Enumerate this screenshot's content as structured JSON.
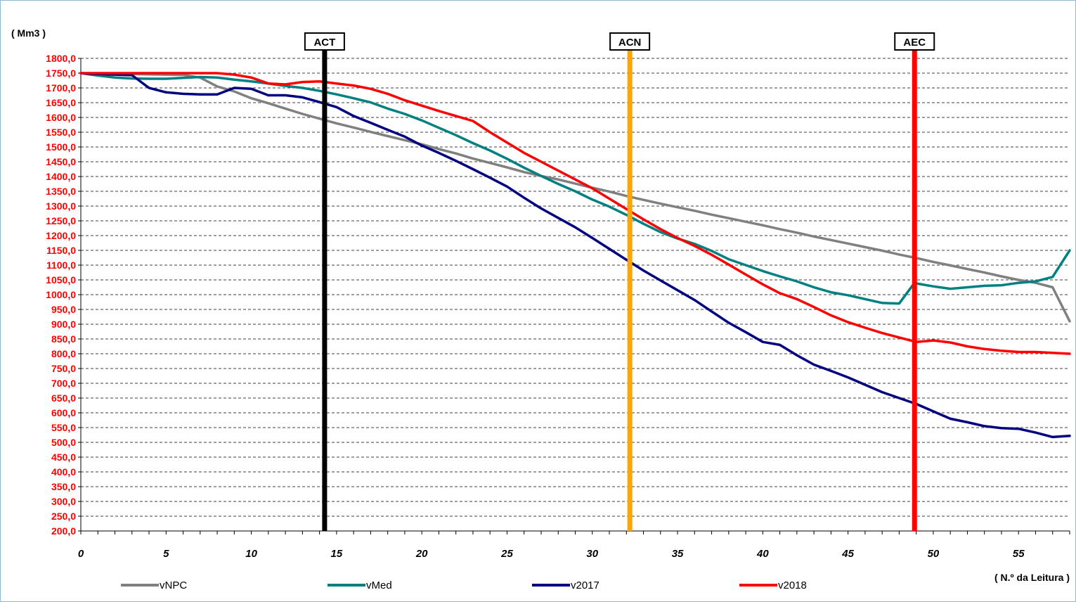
{
  "chart_data": {
    "type": "line",
    "ylabel": "( Mm3 )",
    "xlabel": "( N.º da Leitura )",
    "xlim": [
      0,
      58
    ],
    "ylim": [
      200,
      1800
    ],
    "xticks": [
      0,
      5,
      10,
      15,
      20,
      25,
      30,
      35,
      40,
      45,
      50,
      55
    ],
    "xtick_labels": [
      "0",
      "5",
      "10",
      "15",
      "20",
      "25",
      "30",
      "35",
      "40",
      "45",
      "50",
      "55"
    ],
    "yticks": [
      200,
      250,
      300,
      350,
      400,
      450,
      500,
      550,
      600,
      650,
      700,
      750,
      800,
      850,
      900,
      950,
      1000,
      1050,
      1100,
      1150,
      1200,
      1250,
      1300,
      1350,
      1400,
      1450,
      1500,
      1550,
      1600,
      1650,
      1700,
      1750,
      1800
    ],
    "ytick_labels": [
      "200,0",
      "250,0",
      "300,0",
      "350,0",
      "400,0",
      "450,0",
      "500,0",
      "550,0",
      "600,0",
      "650,0",
      "700,0",
      "750,0",
      "800,0",
      "850,0",
      "900,0",
      "950,0",
      "1000,0",
      "1050,0",
      "1100,0",
      "1150,0",
      "1200,0",
      "1250,0",
      "1300,0",
      "1350,0",
      "1400,0",
      "1450,0",
      "1500,0",
      "1550,0",
      "1600,0",
      "1650,0",
      "1700,0",
      "1750,0",
      "1800,0"
    ],
    "grid": true,
    "legend_position": "bottom",
    "markers": [
      {
        "label": "ACT",
        "x": 14.3,
        "color": "#000000"
      },
      {
        "label": "ACN",
        "x": 32.2,
        "color": "#ffa500"
      },
      {
        "label": "AEC",
        "x": 48.9,
        "color": "#ff0000"
      }
    ],
    "series": [
      {
        "name": "vNPC",
        "color": "#808080",
        "points": [
          [
            0,
            1750
          ],
          [
            1,
            1749
          ],
          [
            2,
            1748
          ],
          [
            3,
            1747
          ],
          [
            4,
            1746
          ],
          [
            5,
            1745
          ],
          [
            6,
            1744
          ],
          [
            7,
            1735
          ],
          [
            8,
            1705
          ],
          [
            9,
            1688
          ],
          [
            10,
            1665
          ],
          [
            11,
            1648
          ],
          [
            12,
            1630
          ],
          [
            13,
            1612
          ],
          [
            14,
            1596
          ],
          [
            15,
            1580
          ],
          [
            16,
            1566
          ],
          [
            17,
            1551
          ],
          [
            18,
            1537
          ],
          [
            19,
            1523
          ],
          [
            20,
            1509
          ],
          [
            21,
            1493
          ],
          [
            22,
            1478
          ],
          [
            23,
            1461
          ],
          [
            24,
            1446
          ],
          [
            25,
            1431
          ],
          [
            26,
            1415
          ],
          [
            27,
            1402
          ],
          [
            28,
            1390
          ],
          [
            29,
            1376
          ],
          [
            30,
            1362
          ],
          [
            31,
            1349
          ],
          [
            32,
            1334
          ],
          [
            33,
            1321
          ],
          [
            34,
            1308
          ],
          [
            35,
            1296
          ],
          [
            36,
            1284
          ],
          [
            37,
            1271
          ],
          [
            38,
            1259
          ],
          [
            39,
            1247
          ],
          [
            40,
            1235
          ],
          [
            41,
            1222
          ],
          [
            42,
            1210
          ],
          [
            43,
            1197
          ],
          [
            44,
            1185
          ],
          [
            45,
            1173
          ],
          [
            46,
            1161
          ],
          [
            47,
            1149
          ],
          [
            48,
            1136
          ],
          [
            49,
            1124
          ],
          [
            50,
            1111
          ],
          [
            51,
            1099
          ],
          [
            52,
            1087
          ],
          [
            53,
            1075
          ],
          [
            54,
            1062
          ],
          [
            55,
            1050
          ],
          [
            56,
            1040
          ],
          [
            57,
            1025
          ],
          [
            58,
            910
          ]
        ]
      },
      {
        "name": "vMed",
        "color": "#008080",
        "points": [
          [
            0,
            1750
          ],
          [
            1,
            1742
          ],
          [
            2,
            1735
          ],
          [
            3,
            1732
          ],
          [
            4,
            1731
          ],
          [
            5,
            1731
          ],
          [
            6,
            1734
          ],
          [
            7,
            1737
          ],
          [
            8,
            1735
          ],
          [
            9,
            1728
          ],
          [
            10,
            1722
          ],
          [
            11,
            1715
          ],
          [
            12,
            1707
          ],
          [
            13,
            1700
          ],
          [
            14,
            1690
          ],
          [
            15,
            1678
          ],
          [
            16,
            1665
          ],
          [
            17,
            1651
          ],
          [
            18,
            1630
          ],
          [
            19,
            1612
          ],
          [
            20,
            1590
          ],
          [
            21,
            1565
          ],
          [
            22,
            1540
          ],
          [
            23,
            1513
          ],
          [
            24,
            1488
          ],
          [
            25,
            1460
          ],
          [
            26,
            1430
          ],
          [
            27,
            1402
          ],
          [
            28,
            1375
          ],
          [
            29,
            1350
          ],
          [
            30,
            1322
          ],
          [
            31,
            1298
          ],
          [
            32,
            1270
          ],
          [
            33,
            1240
          ],
          [
            34,
            1212
          ],
          [
            35,
            1190
          ],
          [
            36,
            1172
          ],
          [
            37,
            1148
          ],
          [
            38,
            1120
          ],
          [
            39,
            1100
          ],
          [
            40,
            1080
          ],
          [
            41,
            1062
          ],
          [
            42,
            1045
          ],
          [
            43,
            1025
          ],
          [
            44,
            1008
          ],
          [
            45,
            998
          ],
          [
            46,
            985
          ],
          [
            47,
            972
          ],
          [
            48,
            970
          ],
          [
            48.9,
            1040
          ],
          [
            49,
            1038
          ],
          [
            50,
            1028
          ],
          [
            51,
            1020
          ],
          [
            52,
            1025
          ],
          [
            53,
            1030
          ],
          [
            54,
            1032
          ],
          [
            55,
            1040
          ],
          [
            56,
            1045
          ],
          [
            57,
            1060
          ],
          [
            58,
            1150
          ]
        ]
      },
      {
        "name": "v2017",
        "color": "#000080",
        "points": [
          [
            0,
            1750
          ],
          [
            1,
            1747
          ],
          [
            2,
            1745
          ],
          [
            3,
            1743
          ],
          [
            4,
            1700
          ],
          [
            5,
            1685
          ],
          [
            6,
            1680
          ],
          [
            7,
            1678
          ],
          [
            8,
            1678
          ],
          [
            9,
            1700
          ],
          [
            10,
            1697
          ],
          [
            11,
            1675
          ],
          [
            12,
            1675
          ],
          [
            13,
            1668
          ],
          [
            14,
            1652
          ],
          [
            15,
            1635
          ],
          [
            16,
            1605
          ],
          [
            17,
            1582
          ],
          [
            18,
            1558
          ],
          [
            19,
            1535
          ],
          [
            20,
            1505
          ],
          [
            21,
            1480
          ],
          [
            22,
            1453
          ],
          [
            23,
            1425
          ],
          [
            24,
            1396
          ],
          [
            25,
            1366
          ],
          [
            26,
            1328
          ],
          [
            27,
            1292
          ],
          [
            28,
            1260
          ],
          [
            29,
            1228
          ],
          [
            30,
            1192
          ],
          [
            31,
            1155
          ],
          [
            32,
            1118
          ],
          [
            33,
            1082
          ],
          [
            34,
            1048
          ],
          [
            35,
            1015
          ],
          [
            36,
            982
          ],
          [
            37,
            943
          ],
          [
            38,
            905
          ],
          [
            39,
            873
          ],
          [
            40,
            840
          ],
          [
            41,
            830
          ],
          [
            42,
            795
          ],
          [
            43,
            763
          ],
          [
            44,
            742
          ],
          [
            45,
            720
          ],
          [
            46,
            695
          ],
          [
            47,
            670
          ],
          [
            48,
            650
          ],
          [
            49,
            630
          ],
          [
            50,
            605
          ],
          [
            51,
            580
          ],
          [
            52,
            568
          ],
          [
            53,
            555
          ],
          [
            54,
            548
          ],
          [
            55,
            546
          ],
          [
            56,
            533
          ],
          [
            57,
            518
          ],
          [
            58,
            522
          ]
        ]
      },
      {
        "name": "v2018",
        "color": "#ff0000",
        "points": [
          [
            0,
            1750
          ],
          [
            1,
            1750
          ],
          [
            2,
            1750
          ],
          [
            3,
            1750
          ],
          [
            4,
            1750
          ],
          [
            5,
            1750
          ],
          [
            6,
            1750
          ],
          [
            7,
            1750
          ],
          [
            8,
            1750
          ],
          [
            9,
            1745
          ],
          [
            10,
            1735
          ],
          [
            11,
            1715
          ],
          [
            12,
            1712
          ],
          [
            13,
            1720
          ],
          [
            14,
            1722
          ],
          [
            15,
            1715
          ],
          [
            16,
            1708
          ],
          [
            17,
            1697
          ],
          [
            18,
            1680
          ],
          [
            19,
            1658
          ],
          [
            20,
            1640
          ],
          [
            21,
            1622
          ],
          [
            22,
            1605
          ],
          [
            23,
            1588
          ],
          [
            24,
            1550
          ],
          [
            25,
            1515
          ],
          [
            26,
            1480
          ],
          [
            27,
            1450
          ],
          [
            28,
            1420
          ],
          [
            29,
            1390
          ],
          [
            30,
            1360
          ],
          [
            31,
            1325
          ],
          [
            32,
            1290
          ],
          [
            33,
            1255
          ],
          [
            34,
            1222
          ],
          [
            35,
            1192
          ],
          [
            36,
            1165
          ],
          [
            37,
            1135
          ],
          [
            38,
            1102
          ],
          [
            39,
            1068
          ],
          [
            40,
            1035
          ],
          [
            41,
            1005
          ],
          [
            42,
            985
          ],
          [
            43,
            958
          ],
          [
            44,
            930
          ],
          [
            45,
            907
          ],
          [
            46,
            888
          ],
          [
            47,
            870
          ],
          [
            48,
            855
          ],
          [
            49,
            840
          ],
          [
            50,
            845
          ],
          [
            51,
            838
          ],
          [
            52,
            825
          ],
          [
            53,
            816
          ],
          [
            54,
            810
          ],
          [
            55,
            806
          ],
          [
            56,
            806
          ],
          [
            57,
            803
          ],
          [
            58,
            800
          ]
        ]
      }
    ]
  }
}
